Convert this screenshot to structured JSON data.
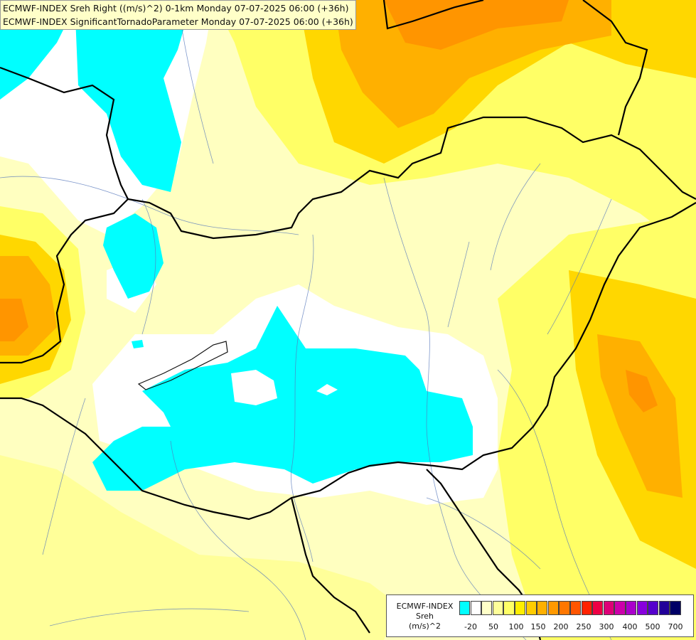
{
  "header": {
    "line1": "ECMWF-INDEX Sreh Right ((m/s)^2) 0-1km Monday 07-07-2025 06:00 (+36h)",
    "line2": "ECMWF-INDEX SignificantTornadoParameter Monday 07-07-2025 06:00 (+36h)"
  },
  "legend": {
    "line1": "ECMWF-INDEX",
    "line2": "Sreh",
    "line3": "(m/s)^2",
    "ticks": [
      "-20",
      "50",
      "100",
      "150",
      "200",
      "250",
      "300",
      "400",
      "500",
      "700"
    ],
    "colors": [
      "#00ffff",
      "#ffffff",
      "#ffffc8",
      "#ffff99",
      "#ffff66",
      "#ffee00",
      "#ffcc00",
      "#ffb000",
      "#ff9900",
      "#ff7700",
      "#ff5500",
      "#ff2200",
      "#ee0044",
      "#dd0077",
      "#cc00aa",
      "#aa00cc",
      "#8800dd",
      "#5500cc",
      "#220099",
      "#000066"
    ]
  },
  "colors": {
    "cyan": "#00ffff",
    "white": "#ffffff",
    "pale": "#ffffc0",
    "yellow": "#ffff66",
    "gold": "#ffd700",
    "orange": "#ffb000",
    "dark_orange": "#ff9500"
  }
}
